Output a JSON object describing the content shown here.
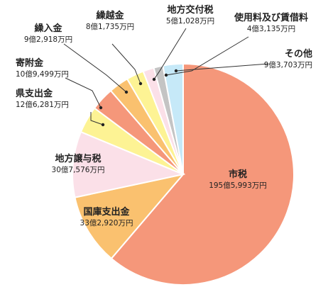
{
  "chart_data": {
    "type": "pie",
    "title": "",
    "slices": [
      {
        "name": "市税",
        "value_label": "195億5,993万円",
        "value": 1955993,
        "color": "#f5977a"
      },
      {
        "name": "国庫支出金",
        "value_label": "33億2,920万円",
        "value": 332920,
        "color": "#fac16f"
      },
      {
        "name": "地方譲与税",
        "value_label": "30億7,576万円",
        "value": 307576,
        "color": "#fbe0e8"
      },
      {
        "name": "県支出金",
        "value_label": "12億6,281万円",
        "value": 126281,
        "color": "#fdf394"
      },
      {
        "name": "寄附金",
        "value_label": "10億9,499万円",
        "value": 109499,
        "color": "#f5977a"
      },
      {
        "name": "繰入金",
        "value_label": "9億2,918万円",
        "value": 92918,
        "color": "#fac16f"
      },
      {
        "name": "繰越金",
        "value_label": "8億1,735万円",
        "value": 81735,
        "color": "#fdf394"
      },
      {
        "name": "地方交付税",
        "value_label": "5億1,028万円",
        "value": 51028,
        "color": "#fbe0e8"
      },
      {
        "name": "使用料及び賃借料",
        "value_label": "4億3,135万円",
        "value": 43135,
        "color": "#c4c4c4"
      },
      {
        "name": "その他",
        "value_label": "9億3,703万円",
        "value": 93703,
        "color": "#c6e9f8"
      }
    ]
  }
}
